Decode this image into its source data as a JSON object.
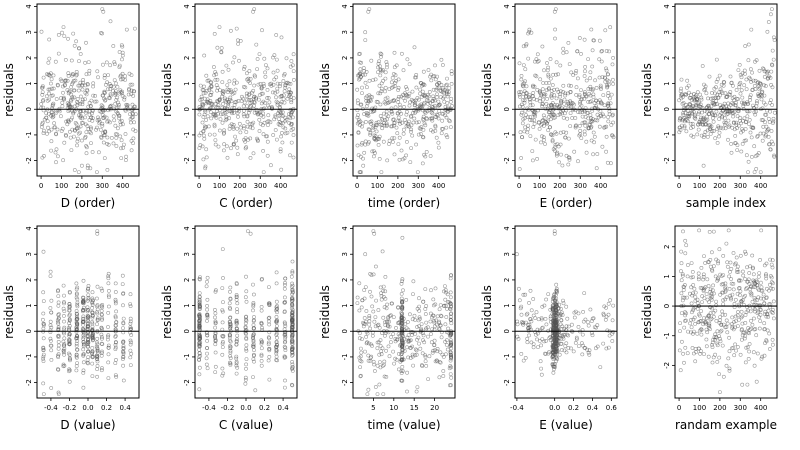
{
  "figure": {
    "type": "residual diagnostic plots"
  },
  "chart_data": [
    {
      "type": "scatter",
      "panel": "D-order",
      "xlabel": "D (order)",
      "ylabel": "residuals",
      "xlim": [
        -20,
        480
      ],
      "ylim": [
        -2.6,
        4.1
      ],
      "xticks": [
        0,
        100,
        200,
        300,
        400
      ],
      "xtick_labels": [
        "0",
        "100",
        "200",
        "300",
        "400"
      ],
      "yticks": [
        -2,
        -1,
        0,
        1,
        2,
        3,
        4
      ],
      "ytick_labels": [
        "-2",
        "-1",
        "0",
        "1",
        "2",
        "3",
        "4"
      ],
      "hline": 0,
      "n_points": 470,
      "x_range": [
        0,
        465
      ],
      "y_pattern": "uniform spread, noise roughly N(0, 0.9), some outliers to 3.9",
      "extremes": [
        [
          300,
          3.9
        ],
        [
          305,
          3.8
        ],
        [
          110,
          3.2
        ],
        [
          200,
          -2.2
        ]
      ]
    },
    {
      "type": "scatter",
      "panel": "C-order",
      "xlabel": "C (order)",
      "ylabel": "residuals",
      "xlim": [
        -20,
        480
      ],
      "ylim": [
        -2.6,
        4.1
      ],
      "xticks": [
        0,
        100,
        200,
        300,
        400
      ],
      "xtick_labels": [
        "0",
        "100",
        "200",
        "300",
        "400"
      ],
      "yticks": [
        -2,
        -1,
        0,
        1,
        2,
        3,
        4
      ],
      "ytick_labels": [
        "-2",
        "-1",
        "0",
        "1",
        "2",
        "3",
        "4"
      ],
      "hline": 0,
      "n_points": 470,
      "x_range": [
        0,
        465
      ],
      "y_pattern": "uniform spread, noise roughly N(0, 0.9)",
      "extremes": [
        [
          270,
          3.9
        ],
        [
          265,
          3.8
        ],
        [
          100,
          3.2
        ],
        [
          30,
          -2.3
        ]
      ]
    },
    {
      "type": "scatter",
      "panel": "time-order",
      "xlabel": "time (order)",
      "ylabel": "residuals",
      "xlim": [
        -20,
        480
      ],
      "ylim": [
        -2.6,
        4.1
      ],
      "xticks": [
        0,
        100,
        200,
        300,
        400
      ],
      "xtick_labels": [
        "0",
        "100",
        "200",
        "300",
        "400"
      ],
      "yticks": [
        -2,
        -1,
        0,
        1,
        2,
        3,
        4
      ],
      "ytick_labels": [
        "-2",
        "-1",
        "0",
        "1",
        "2",
        "3",
        "4"
      ],
      "hline": 0,
      "n_points": 470,
      "x_range": [
        0,
        465
      ],
      "y_pattern": "larger spread at low order, tapering at high order",
      "extremes": [
        [
          60,
          3.9
        ],
        [
          55,
          3.8
        ],
        [
          40,
          3.0
        ],
        [
          30,
          -2.2
        ]
      ]
    },
    {
      "type": "scatter",
      "panel": "E-order",
      "xlabel": "E (order)",
      "ylabel": "residuals",
      "xlim": [
        -20,
        480
      ],
      "ylim": [
        -2.6,
        4.1
      ],
      "xticks": [
        0,
        100,
        200,
        300,
        400
      ],
      "xtick_labels": [
        "0",
        "100",
        "200",
        "300",
        "400"
      ],
      "yticks": [
        -2,
        -1,
        0,
        1,
        2,
        3,
        4
      ],
      "ytick_labels": [
        "-2",
        "-1",
        "0",
        "1",
        "2",
        "3",
        "4"
      ],
      "hline": 0,
      "n_points": 470,
      "x_range": [
        0,
        465
      ],
      "y_pattern": "uniform spread, noise roughly N(0, 0.9)",
      "extremes": [
        [
          180,
          3.9
        ],
        [
          175,
          3.8
        ],
        [
          450,
          -2.1
        ],
        [
          10,
          -1.9
        ]
      ]
    },
    {
      "type": "scatter",
      "panel": "sample-index",
      "xlabel": "sample index",
      "ylabel": "residuals",
      "xlim": [
        -20,
        480
      ],
      "ylim": [
        -2.6,
        4.1
      ],
      "xticks": [
        0,
        100,
        200,
        300,
        400
      ],
      "xtick_labels": [
        "0",
        "100",
        "200",
        "300",
        "400"
      ],
      "yticks": [
        -2,
        -1,
        0,
        1,
        2,
        3,
        4
      ],
      "ytick_labels": [
        "-2",
        "-1",
        "0",
        "1",
        "2",
        "3",
        "4"
      ],
      "hline": 0,
      "n_points": 470,
      "x_range": [
        0,
        465
      ],
      "y_pattern": "narrow spread at low index, widening at high index",
      "extremes": [
        [
          455,
          3.9
        ],
        [
          450,
          3.7
        ],
        [
          440,
          3.4
        ],
        [
          120,
          -2.2
        ]
      ]
    },
    {
      "type": "scatter",
      "panel": "D-value",
      "xlabel": "D (value)",
      "ylabel": "residuals",
      "xlim": [
        -0.55,
        0.55
      ],
      "ylim": [
        -2.6,
        4.1
      ],
      "xticks": [
        -0.4,
        -0.2,
        0.0,
        0.2,
        0.4
      ],
      "xtick_labels": [
        "-0.4",
        "-0.2",
        "0.0",
        "0.2",
        "0.4"
      ],
      "yticks": [
        -2,
        -1,
        0,
        1,
        2,
        3,
        4
      ],
      "ytick_labels": [
        "-2",
        "-1",
        "0",
        "1",
        "2",
        "3",
        "4"
      ],
      "hline": 0,
      "n_points": 470,
      "x_values": [
        -0.48,
        -0.4,
        -0.32,
        -0.26,
        -0.2,
        -0.12,
        -0.05,
        0.0,
        0.05,
        0.1,
        0.15,
        0.22,
        0.3,
        0.38,
        0.46
      ],
      "y_pattern": "vertical bands at discrete D values, denser near center",
      "extremes": [
        [
          0.1,
          3.9
        ],
        [
          0.1,
          3.8
        ],
        [
          -0.48,
          3.1
        ],
        [
          -0.05,
          -2.2
        ]
      ]
    },
    {
      "type": "scatter",
      "panel": "C-value",
      "xlabel": "C (value)",
      "ylabel": "residuals",
      "xlim": [
        -0.55,
        0.55
      ],
      "ylim": [
        -2.6,
        4.1
      ],
      "xticks": [
        -0.4,
        -0.2,
        0.0,
        0.2,
        0.4
      ],
      "xtick_labels": [
        "-0.4",
        "-0.2",
        "0.0",
        "0.2",
        "0.4"
      ],
      "yticks": [
        -2,
        -1,
        0,
        1,
        2,
        3,
        4
      ],
      "ytick_labels": [
        "-2",
        "-1",
        "0",
        "1",
        "2",
        "3",
        "4"
      ],
      "hline": 0,
      "n_points": 470,
      "x_values": [
        -0.5,
        -0.42,
        -0.33,
        -0.25,
        -0.17,
        -0.1,
        0.0,
        0.08,
        0.17,
        0.25,
        0.33,
        0.42,
        0.5
      ],
      "y_pattern": "vertical bands, heavier at -0.5 and 0.5",
      "extremes": [
        [
          0.02,
          3.9
        ],
        [
          0.05,
          3.8
        ],
        [
          -0.25,
          3.2
        ],
        [
          0.1,
          -2.3
        ]
      ]
    },
    {
      "type": "scatter",
      "panel": "time-value",
      "xlabel": "time (value)",
      "ylabel": "residuals",
      "xlim": [
        0,
        25
      ],
      "ylim": [
        -2.6,
        4.1
      ],
      "xticks": [
        5,
        10,
        15,
        20
      ],
      "xtick_labels": [
        "5",
        "10",
        "15",
        "20"
      ],
      "yticks": [
        -2,
        -1,
        0,
        1,
        2,
        3,
        4
      ],
      "ytick_labels": [
        "-2",
        "-1",
        "0",
        "1",
        "2",
        "3",
        "4"
      ],
      "hline": 0,
      "n_points": 470,
      "x_range": [
        1,
        24
      ],
      "y_pattern": "wider spread at small time, dense column near 12",
      "extremes": [
        [
          5,
          3.9
        ],
        [
          5.2,
          3.8
        ],
        [
          3,
          3.0
        ],
        [
          24,
          -2.1
        ]
      ]
    },
    {
      "type": "scatter",
      "panel": "E-value",
      "xlabel": "E (value)",
      "ylabel": "residuals",
      "xlim": [
        -0.42,
        0.66
      ],
      "ylim": [
        -2.6,
        4.1
      ],
      "xticks": [
        -0.4,
        0.0,
        0.2,
        0.4,
        0.6
      ],
      "xtick_labels": [
        "-0.4",
        "0.0",
        "0.2",
        "0.4",
        "0.6"
      ],
      "yticks": [
        -2,
        -1,
        0,
        1,
        2,
        3,
        4
      ],
      "ytick_labels": [
        "-2",
        "-1",
        "0",
        "1",
        "2",
        "3",
        "4"
      ],
      "hline": 0,
      "n_points": 470,
      "x_range": [
        -0.4,
        0.62
      ],
      "y_pattern": "very dense vertical column at E = 0, sparse elsewhere",
      "extremes": [
        [
          0.0,
          3.9
        ],
        [
          0.0,
          3.8
        ],
        [
          -0.4,
          3.0
        ],
        [
          0.62,
          1.0
        ]
      ]
    },
    {
      "type": "scatter",
      "panel": "random-example",
      "xlabel": "randam example",
      "ylabel": "residuals",
      "xlim": [
        -20,
        480
      ],
      "ylim": [
        -3.1,
        2.7
      ],
      "xticks": [
        0,
        100,
        200,
        300,
        400
      ],
      "xtick_labels": [
        "0",
        "100",
        "200",
        "300",
        "400"
      ],
      "yticks": [
        -2,
        -1,
        0,
        1,
        2
      ],
      "ytick_labels": [
        "-2",
        "-1",
        "0",
        "1",
        "2"
      ],
      "hline": 0,
      "n_points": 470,
      "x_range": [
        0,
        465
      ],
      "y_pattern": "pure noise, roughly N(0, 1)",
      "extremes": [
        [
          200,
          -2.9
        ],
        [
          150,
          2.5
        ],
        [
          30,
          2.2
        ]
      ]
    }
  ]
}
